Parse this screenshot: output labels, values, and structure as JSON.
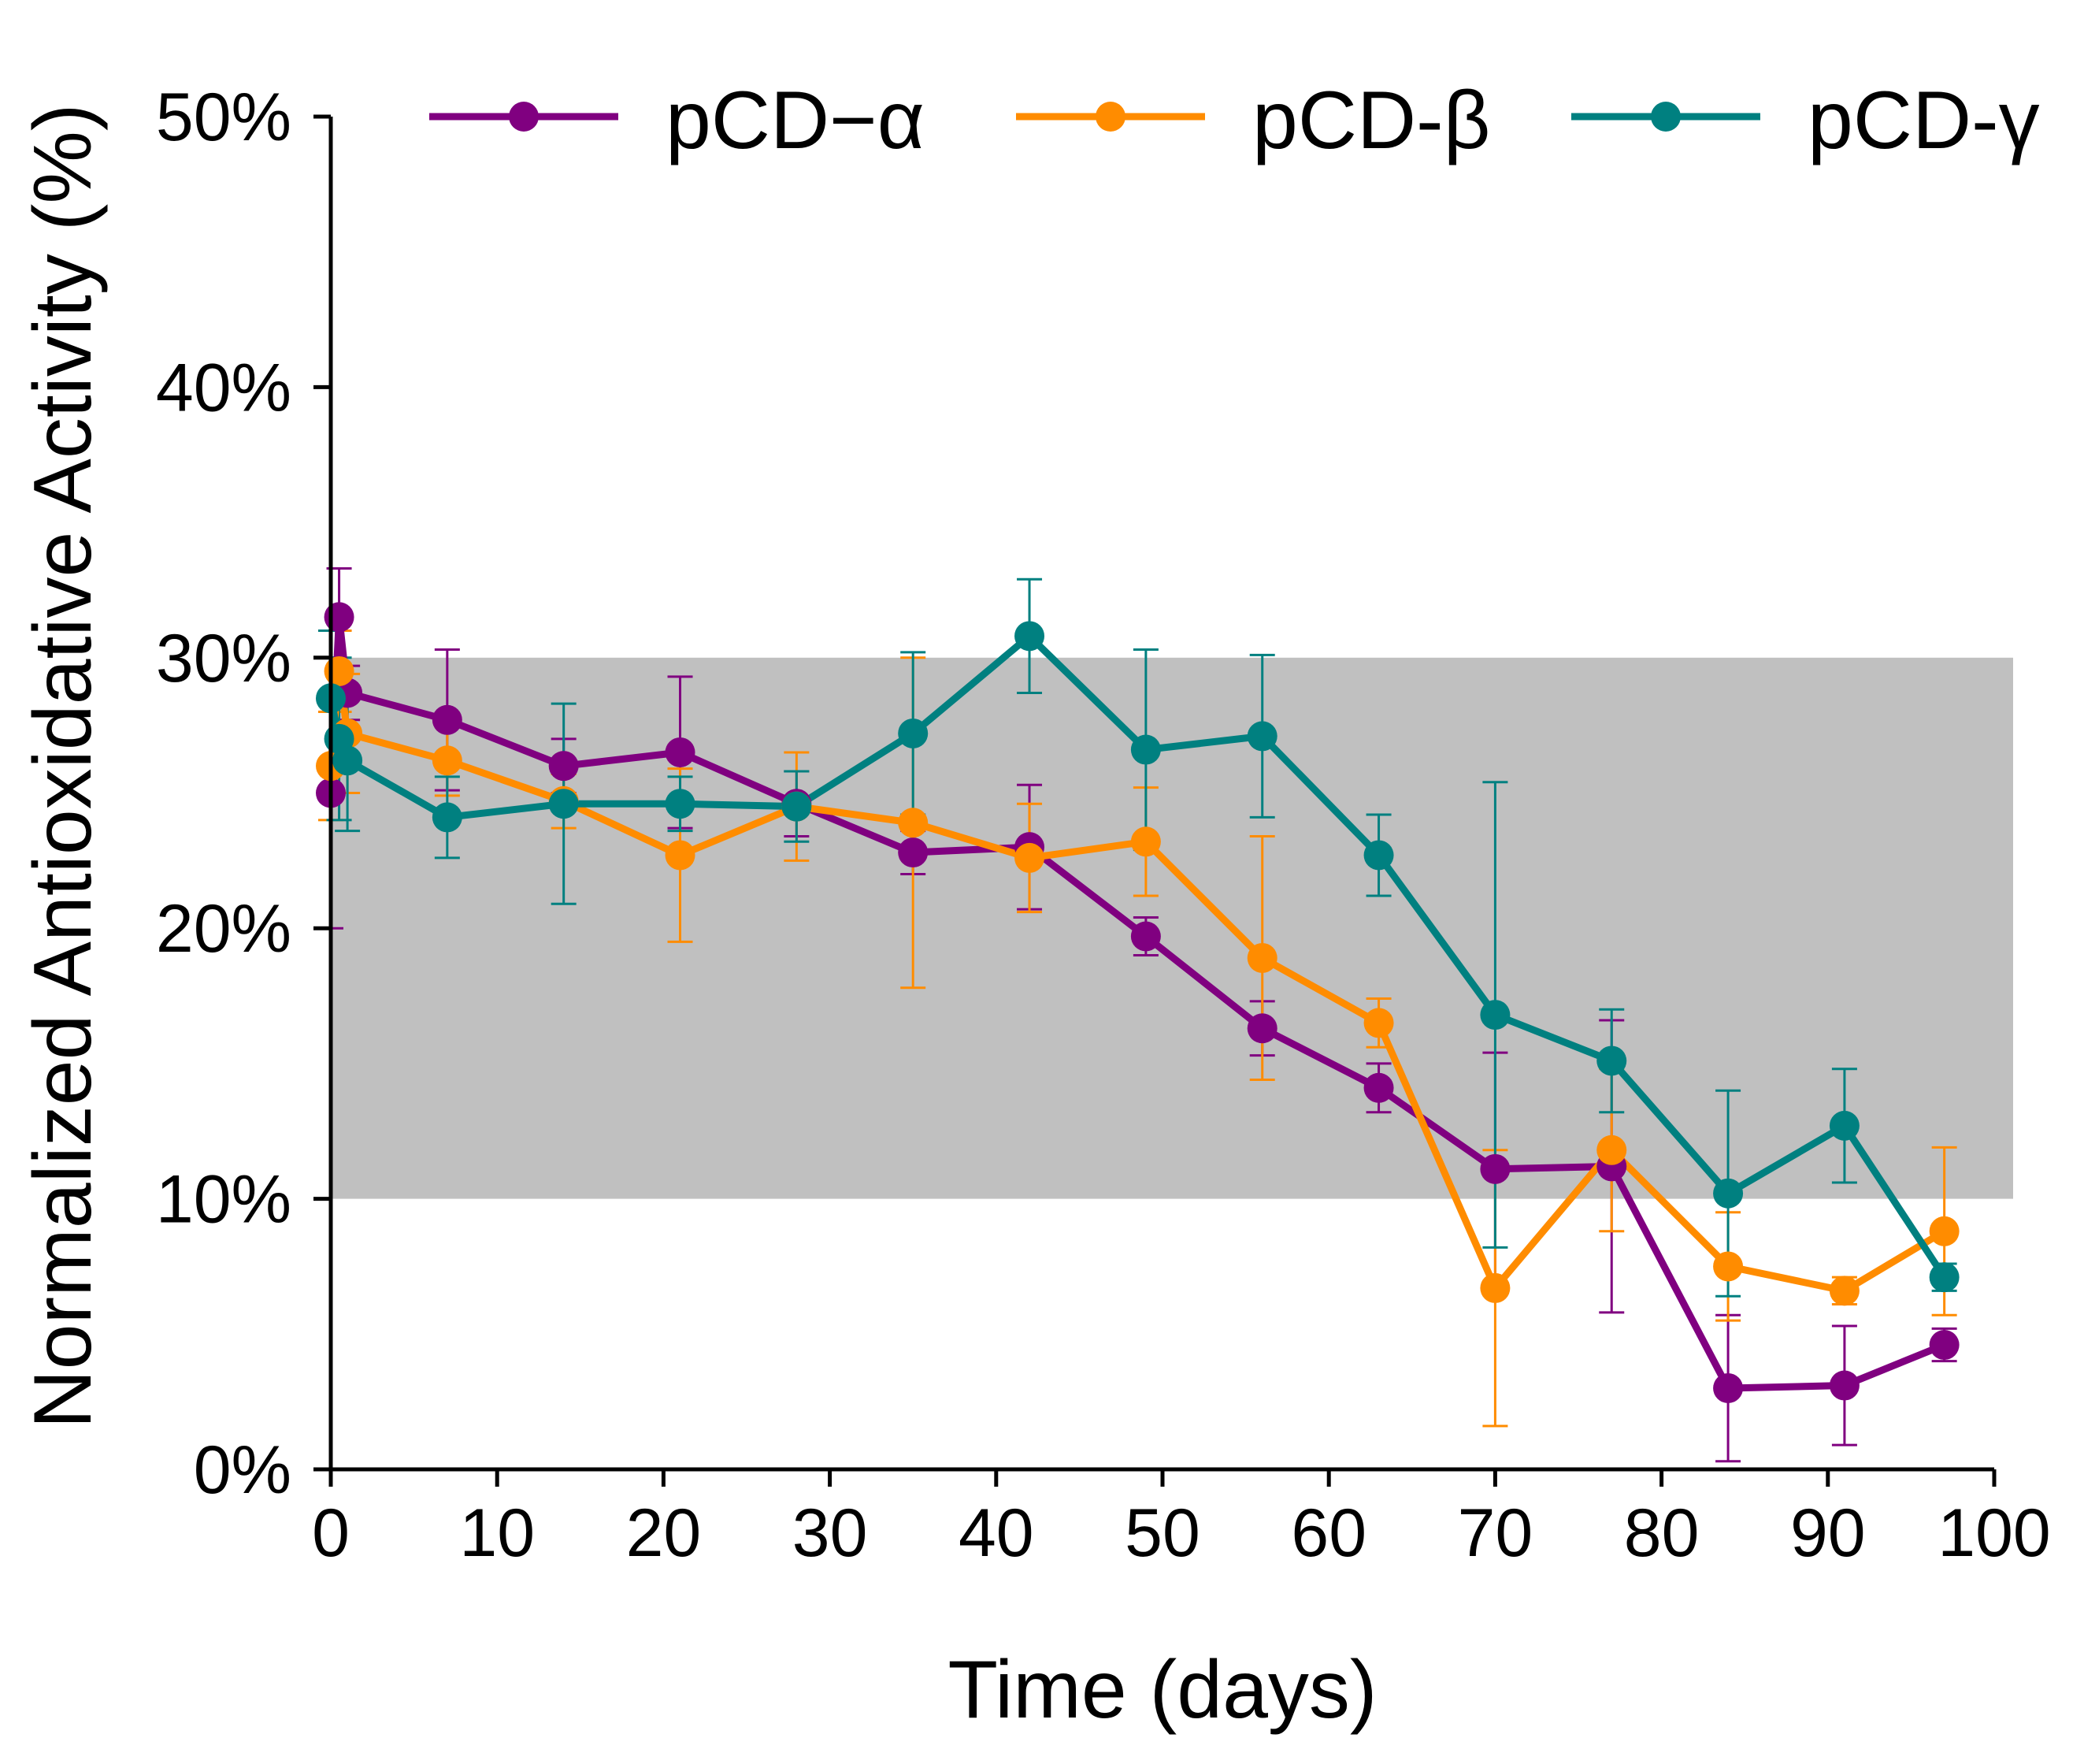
{
  "chart_data": {
    "type": "line",
    "title": "",
    "xlabel": "Time (days)",
    "ylabel": "Normalized Antioxidative Activity (%)",
    "xlim": [
      0,
      100
    ],
    "ylim": [
      0,
      50
    ],
    "xticks": [
      0,
      10,
      20,
      30,
      40,
      50,
      60,
      70,
      80,
      90,
      100
    ],
    "yticks": [
      0,
      10,
      20,
      30,
      40,
      50
    ],
    "xtick_labels": [
      "0",
      "10",
      "20",
      "30",
      "40",
      "50",
      "60",
      "70",
      "80",
      "90",
      "100"
    ],
    "ytick_labels": [
      "0%",
      "10%",
      "20%",
      "30%",
      "40%",
      "50%"
    ],
    "grid": false,
    "legend_position": "top",
    "shaded_band": {
      "y_from": 10,
      "y_to": 30,
      "color": "#c0c0c0"
    },
    "series": [
      {
        "name": "pCD−α",
        "color": "#800080",
        "x": [
          0,
          0.5,
          1,
          7,
          14,
          21,
          28,
          35,
          42,
          49,
          56,
          63,
          70,
          77,
          84,
          91,
          97
        ],
        "values": [
          25.0,
          31.5,
          28.7,
          27.7,
          26.0,
          26.5,
          24.6,
          22.8,
          23.0,
          19.7,
          16.3,
          14.1,
          11.1,
          11.2,
          3.0,
          3.1,
          4.6
        ],
        "errors": [
          5.0,
          1.8,
          1.0,
          2.6,
          1.0,
          2.8,
          1.2,
          0.8,
          2.3,
          0.7,
          1.0,
          0.9,
          4.3,
          5.4,
          2.7,
          2.2,
          0.6
        ]
      },
      {
        "name": "pCD-β",
        "color": "#ff8c00",
        "x": [
          0,
          0.5,
          1,
          7,
          14,
          21,
          28,
          35,
          42,
          49,
          56,
          63,
          70,
          77,
          84,
          91,
          97
        ],
        "values": [
          26.0,
          29.5,
          27.2,
          26.2,
          24.7,
          22.7,
          24.5,
          23.9,
          22.6,
          23.2,
          18.9,
          16.5,
          6.7,
          11.8,
          7.5,
          6.6,
          8.8
        ],
        "errors": [
          2.0,
          1.5,
          2.2,
          1.3,
          1.0,
          3.2,
          2.0,
          6.1,
          2.0,
          2.0,
          4.5,
          0.9,
          5.1,
          3.0,
          2.0,
          0.5,
          3.1
        ]
      },
      {
        "name": "pCD-γ",
        "color": "#008080",
        "x": [
          0,
          0.5,
          1,
          7,
          14,
          21,
          28,
          35,
          42,
          49,
          56,
          63,
          70,
          77,
          84,
          91,
          97
        ],
        "values": [
          28.5,
          27.0,
          26.2,
          24.1,
          24.6,
          24.6,
          24.5,
          27.2,
          30.8,
          26.6,
          27.1,
          22.7,
          16.8,
          15.1,
          10.2,
          12.7,
          7.1
        ],
        "errors": [
          2.5,
          3.0,
          2.6,
          1.5,
          3.7,
          1.0,
          1.3,
          3.0,
          2.1,
          3.7,
          3.0,
          1.5,
          8.6,
          1.9,
          3.8,
          2.1,
          0.5
        ]
      }
    ]
  }
}
